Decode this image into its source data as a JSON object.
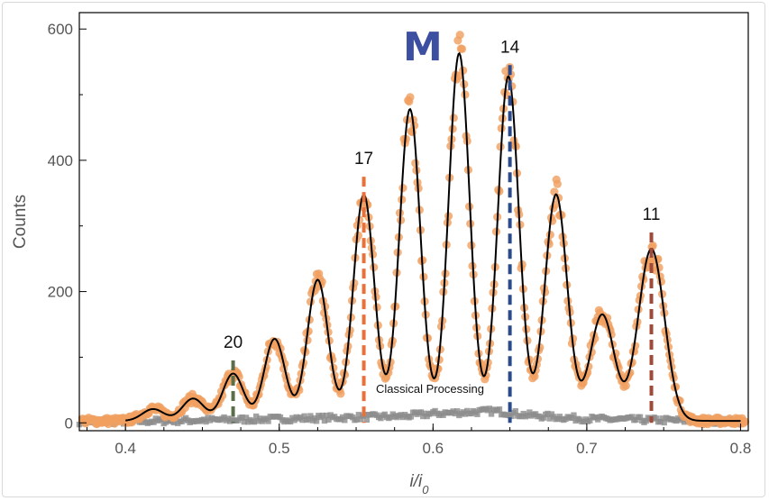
{
  "chart_data": {
    "type": "scatter",
    "title": "",
    "xlabel": "i / i0",
    "ylabel": "Counts",
    "xlim": [
      0.37,
      0.805
    ],
    "ylim": [
      -12,
      625
    ],
    "x_ticks": [
      "0.4",
      "0.5",
      "0.6",
      "0.7",
      "0.8"
    ],
    "x_tick_values": [
      0.4,
      0.5,
      0.6,
      0.7,
      0.8
    ],
    "y_ticks": [
      "0",
      "200",
      "400",
      "600"
    ],
    "y_tick_values": [
      0,
      200,
      400,
      600
    ],
    "grid": false,
    "logo_text": "M",
    "annotation": "Classical Processing",
    "colors": {
      "measured_points": "#f0a060",
      "fit_line": "#000000",
      "classical_points": "#8c8c8c",
      "logo": "#3c4fa0"
    },
    "peaks": [
      {
        "label": "20",
        "x": 0.47,
        "y": 95,
        "color": "#5a6e4a"
      },
      {
        "label": "17",
        "x": 0.555,
        "y": 375,
        "color": "#e8703a"
      },
      {
        "label": "14",
        "x": 0.65,
        "y": 545,
        "color": "#2a4a8a"
      },
      {
        "label": "11",
        "x": 0.742,
        "y": 290,
        "color": "#a04a3a"
      }
    ],
    "fit_baseline": 3,
    "fit_components": [
      {
        "center": 0.418,
        "amplitude": 18,
        "width": 0.007
      },
      {
        "center": 0.444,
        "amplitude": 34,
        "width": 0.007
      },
      {
        "center": 0.47,
        "amplitude": 72,
        "width": 0.0068
      },
      {
        "center": 0.497,
        "amplitude": 125,
        "width": 0.0068
      },
      {
        "center": 0.525,
        "amplitude": 215,
        "width": 0.0068
      },
      {
        "center": 0.555,
        "amplitude": 345,
        "width": 0.0068
      },
      {
        "center": 0.585,
        "amplitude": 475,
        "width": 0.0068
      },
      {
        "center": 0.617,
        "amplitude": 560,
        "width": 0.0068
      },
      {
        "center": 0.649,
        "amplitude": 525,
        "width": 0.0068
      },
      {
        "center": 0.68,
        "amplitude": 345,
        "width": 0.0072
      },
      {
        "center": 0.71,
        "amplitude": 162,
        "width": 0.0078
      },
      {
        "center": 0.742,
        "amplitude": 262,
        "width": 0.0085
      }
    ],
    "classical_x_range": [
      0.37,
      0.8
    ],
    "classical_profile": [
      {
        "x": 0.4,
        "y": 2
      },
      {
        "x": 0.5,
        "y": 6
      },
      {
        "x": 0.58,
        "y": 10
      },
      {
        "x": 0.6,
        "y": 14
      },
      {
        "x": 0.64,
        "y": 18
      },
      {
        "x": 0.66,
        "y": 12
      },
      {
        "x": 0.7,
        "y": 6
      },
      {
        "x": 0.75,
        "y": 4
      },
      {
        "x": 0.8,
        "y": 2
      }
    ]
  }
}
